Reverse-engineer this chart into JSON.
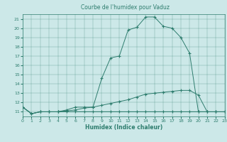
{
  "title": "Courbe de l'humidex pour Vaduz",
  "xlabel": "Humidex (Indice chaleur)",
  "xlim": [
    0,
    23
  ],
  "ylim": [
    10.5,
    21.5
  ],
  "yticks": [
    11,
    12,
    13,
    14,
    15,
    16,
    17,
    18,
    19,
    20,
    21
  ],
  "xticks": [
    0,
    1,
    2,
    3,
    4,
    5,
    6,
    7,
    8,
    9,
    10,
    11,
    12,
    13,
    14,
    15,
    16,
    17,
    18,
    19,
    20,
    21,
    22,
    23
  ],
  "bg_color": "#cce8e8",
  "line_color": "#2e7d6e",
  "line1_x": [
    0,
    1,
    2,
    3,
    4,
    5,
    6,
    7,
    8,
    9,
    10,
    11,
    12,
    13,
    14,
    15,
    16,
    17,
    18,
    19,
    20,
    21,
    22,
    23
  ],
  "line1_y": [
    11.5,
    10.8,
    11.0,
    11.0,
    11.0,
    11.2,
    11.5,
    11.5,
    11.5,
    14.6,
    16.8,
    17.0,
    19.8,
    20.1,
    21.2,
    21.2,
    20.2,
    20.0,
    19.0,
    17.3,
    11.0,
    11.0,
    11.0,
    11.0
  ],
  "line2_x": [
    0,
    1,
    2,
    3,
    4,
    5,
    6,
    7,
    8,
    9,
    10,
    11,
    12,
    13,
    14,
    15,
    16,
    17,
    18,
    19,
    20,
    21,
    22,
    23
  ],
  "line2_y": [
    11.5,
    10.8,
    11.0,
    11.0,
    11.0,
    11.1,
    11.2,
    11.4,
    11.5,
    11.7,
    11.9,
    12.1,
    12.3,
    12.6,
    12.9,
    13.0,
    13.1,
    13.2,
    13.3,
    13.3,
    12.8,
    11.0,
    11.0,
    11.0
  ],
  "line3_x": [
    0,
    1,
    2,
    3,
    4,
    5,
    6,
    7,
    8,
    9,
    10,
    11,
    12,
    13,
    14,
    15,
    16,
    17,
    18,
    19,
    20,
    21,
    22,
    23
  ],
  "line3_y": [
    11.5,
    10.8,
    11.0,
    11.0,
    11.0,
    11.0,
    11.0,
    11.0,
    11.0,
    11.0,
    11.0,
    11.0,
    11.0,
    11.0,
    11.0,
    11.0,
    11.0,
    11.0,
    11.0,
    11.0,
    11.0,
    11.0,
    11.0,
    11.0
  ]
}
